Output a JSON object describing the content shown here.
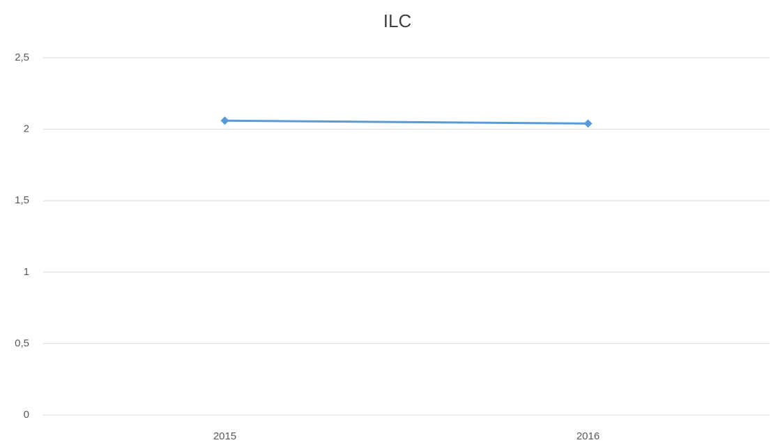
{
  "chart_data": {
    "type": "line",
    "title": "ILC",
    "categories": [
      "2015",
      "2016"
    ],
    "values": [
      2.06,
      2.04
    ],
    "color": "#5b9bd5",
    "ylim": [
      0,
      2.5
    ],
    "yticks": [
      0,
      {
        "value": 0.5,
        "label": "0,5"
      },
      1,
      {
        "value": 1.5,
        "label": "1,5"
      },
      2,
      {
        "value": 2.5,
        "label": "2,5"
      }
    ],
    "grid": true
  }
}
